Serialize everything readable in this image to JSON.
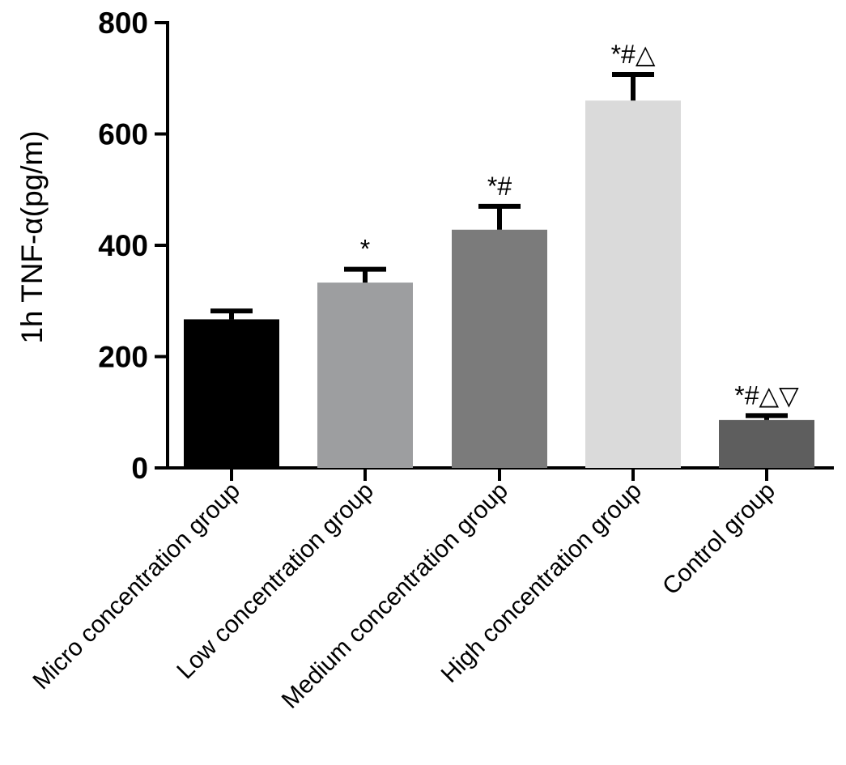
{
  "chart_data": {
    "type": "bar",
    "title": "",
    "xlabel": "",
    "ylabel": "1h TNF-α(pg/m)",
    "ylim": [
      0,
      800
    ],
    "yticks": [
      0,
      200,
      400,
      600,
      800
    ],
    "grid": false,
    "categories": [
      "Micro concentration group",
      "Low concentration group",
      "Medium concentration group",
      "High concentration group",
      "Control group"
    ],
    "values": [
      267,
      333,
      428,
      660,
      86
    ],
    "errors": [
      15,
      24,
      42,
      47,
      8
    ],
    "significance": [
      "",
      "*",
      "*#",
      "*#△",
      "*#△▽"
    ],
    "colors": [
      "#000000",
      "#9d9ea0",
      "#7b7b7b",
      "#dadada",
      "#5e5e5e"
    ]
  }
}
